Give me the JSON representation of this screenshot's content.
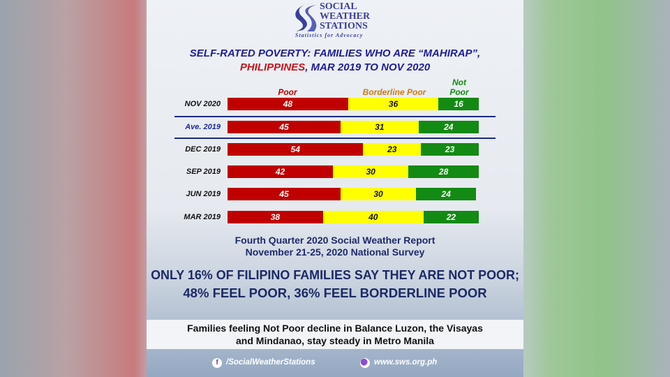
{
  "logo": {
    "line1": "SOCIAL",
    "line2": "WEATHER",
    "line3": "STATIONS",
    "tagline": "Statistics for Advocacy"
  },
  "title": {
    "line1": "SELF-RATED POVERTY: FAMILIES WHO ARE “MAHIRAP”,",
    "line2_red": "PHILIPPINES",
    "line2_rest": ", MAR 2019 TO NOV 2020"
  },
  "chart_data": {
    "type": "bar",
    "stacked": true,
    "orientation": "horizontal",
    "categories": [
      "NOV 2020",
      "Ave. 2019",
      "DEC 2019",
      "SEP 2019",
      "JUN 2019",
      "MAR 2019"
    ],
    "series": [
      {
        "name": "Poor",
        "color": "#c00000",
        "values": [
          48,
          45,
          54,
          42,
          45,
          38
        ]
      },
      {
        "name": "Borderline Poor",
        "color": "#ffff00",
        "values": [
          36,
          31,
          23,
          30,
          30,
          40
        ]
      },
      {
        "name": "Not Poor",
        "color": "#138a13",
        "values": [
          16,
          24,
          23,
          28,
          24,
          22
        ]
      }
    ],
    "legend_labels": {
      "poor": "Poor",
      "borderline": "Borderline Poor",
      "notpoor_1": "Not",
      "notpoor_2": "Poor"
    },
    "xlim": [
      0,
      100
    ]
  },
  "subtitle": {
    "line1": "Fourth Quarter 2020 Social Weather Report",
    "line2": "November 21-25, 2020 National Survey"
  },
  "headline": {
    "line1": "ONLY 16% OF FILIPINO FAMILIES SAY THEY ARE NOT POOR;",
    "line2": "48% FEEL POOR, 36% FEEL BORDERLINE POOR"
  },
  "band": {
    "line1": "Families feeling Not Poor decline in Balance Luzon, the Visayas",
    "line2": "and Mindanao, stay steady in Metro Manila"
  },
  "footer": {
    "facebook": "/SocialWeatherStations",
    "website": "www.sws.org.ph",
    "fb_glyph": "f"
  }
}
